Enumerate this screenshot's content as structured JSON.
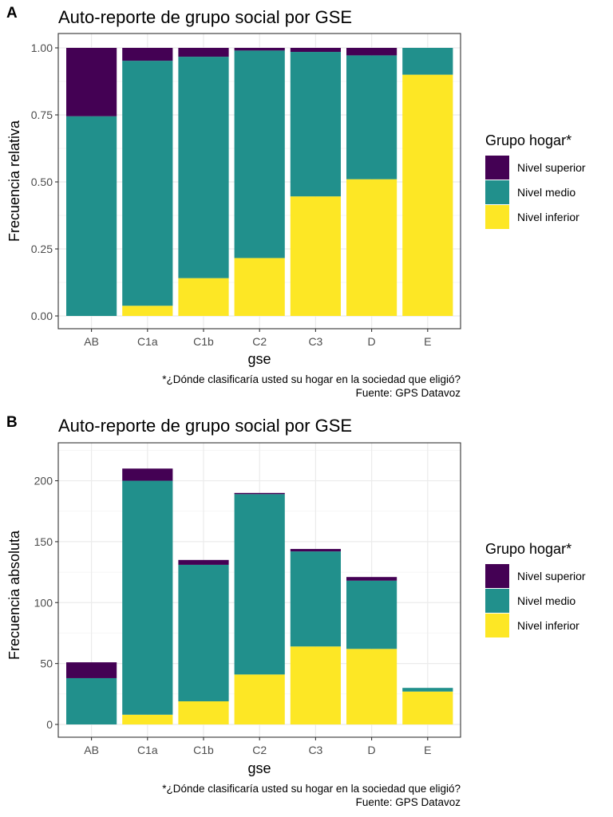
{
  "legend": {
    "title": "Grupo hogar*",
    "items": [
      {
        "label": "Nivel superior",
        "color": "#440154"
      },
      {
        "label": "Nivel medio",
        "color": "#21908C"
      },
      {
        "label": "Nivel inferior",
        "color": "#FDE725"
      }
    ]
  },
  "caption": {
    "line1": "*¿Dónde clasificaría usted su hogar en la sociedad que eligió?",
    "line2": "Fuente: GPS Datavoz"
  },
  "chart_data": [
    {
      "panel": "A",
      "type": "bar",
      "stacked": true,
      "title": "Auto-reporte de grupo social por GSE",
      "xlabel": "gse",
      "ylabel": "Frecuencia relativa",
      "categories": [
        "AB",
        "C1a",
        "C1b",
        "C2",
        "C3",
        "D",
        "E"
      ],
      "ylim": [
        0,
        1
      ],
      "yticks": [
        0,
        0.25,
        0.5,
        0.75,
        1
      ],
      "ytick_labels": [
        "0.00",
        "0.25",
        "0.50",
        "0.75",
        "1.00"
      ],
      "grid": true,
      "legend_position": "right",
      "series": [
        {
          "name": "Nivel inferior",
          "color": "#FDE725",
          "values": [
            0.0,
            0.038,
            0.141,
            0.216,
            0.446,
            0.51,
            0.9
          ]
        },
        {
          "name": "Nivel medio",
          "color": "#21908C",
          "values": [
            0.745,
            0.914,
            0.826,
            0.774,
            0.539,
            0.462,
            0.1
          ]
        },
        {
          "name": "Nivel superior",
          "color": "#440154",
          "values": [
            0.255,
            0.048,
            0.033,
            0.01,
            0.015,
            0.028,
            0.0
          ]
        }
      ]
    },
    {
      "panel": "B",
      "type": "bar",
      "stacked": true,
      "title": "Auto-reporte de grupo social por GSE",
      "xlabel": "gse",
      "ylabel": "Frecuencia absoluta",
      "categories": [
        "AB",
        "C1a",
        "C1b",
        "C2",
        "C3",
        "D",
        "E"
      ],
      "ylim": [
        0,
        220
      ],
      "yticks": [
        0,
        50,
        100,
        150,
        200
      ],
      "ytick_labels": [
        "0",
        "50",
        "100",
        "150",
        "200"
      ],
      "grid": true,
      "legend_position": "right",
      "series": [
        {
          "name": "Nivel inferior",
          "color": "#FDE725",
          "values": [
            0,
            8,
            19,
            41,
            64,
            62,
            27
          ]
        },
        {
          "name": "Nivel medio",
          "color": "#21908C",
          "values": [
            38,
            192,
            112,
            148,
            78,
            56,
            3
          ]
        },
        {
          "name": "Nivel superior",
          "color": "#440154",
          "values": [
            13,
            10,
            4,
            1,
            2,
            3,
            0
          ]
        }
      ]
    }
  ]
}
